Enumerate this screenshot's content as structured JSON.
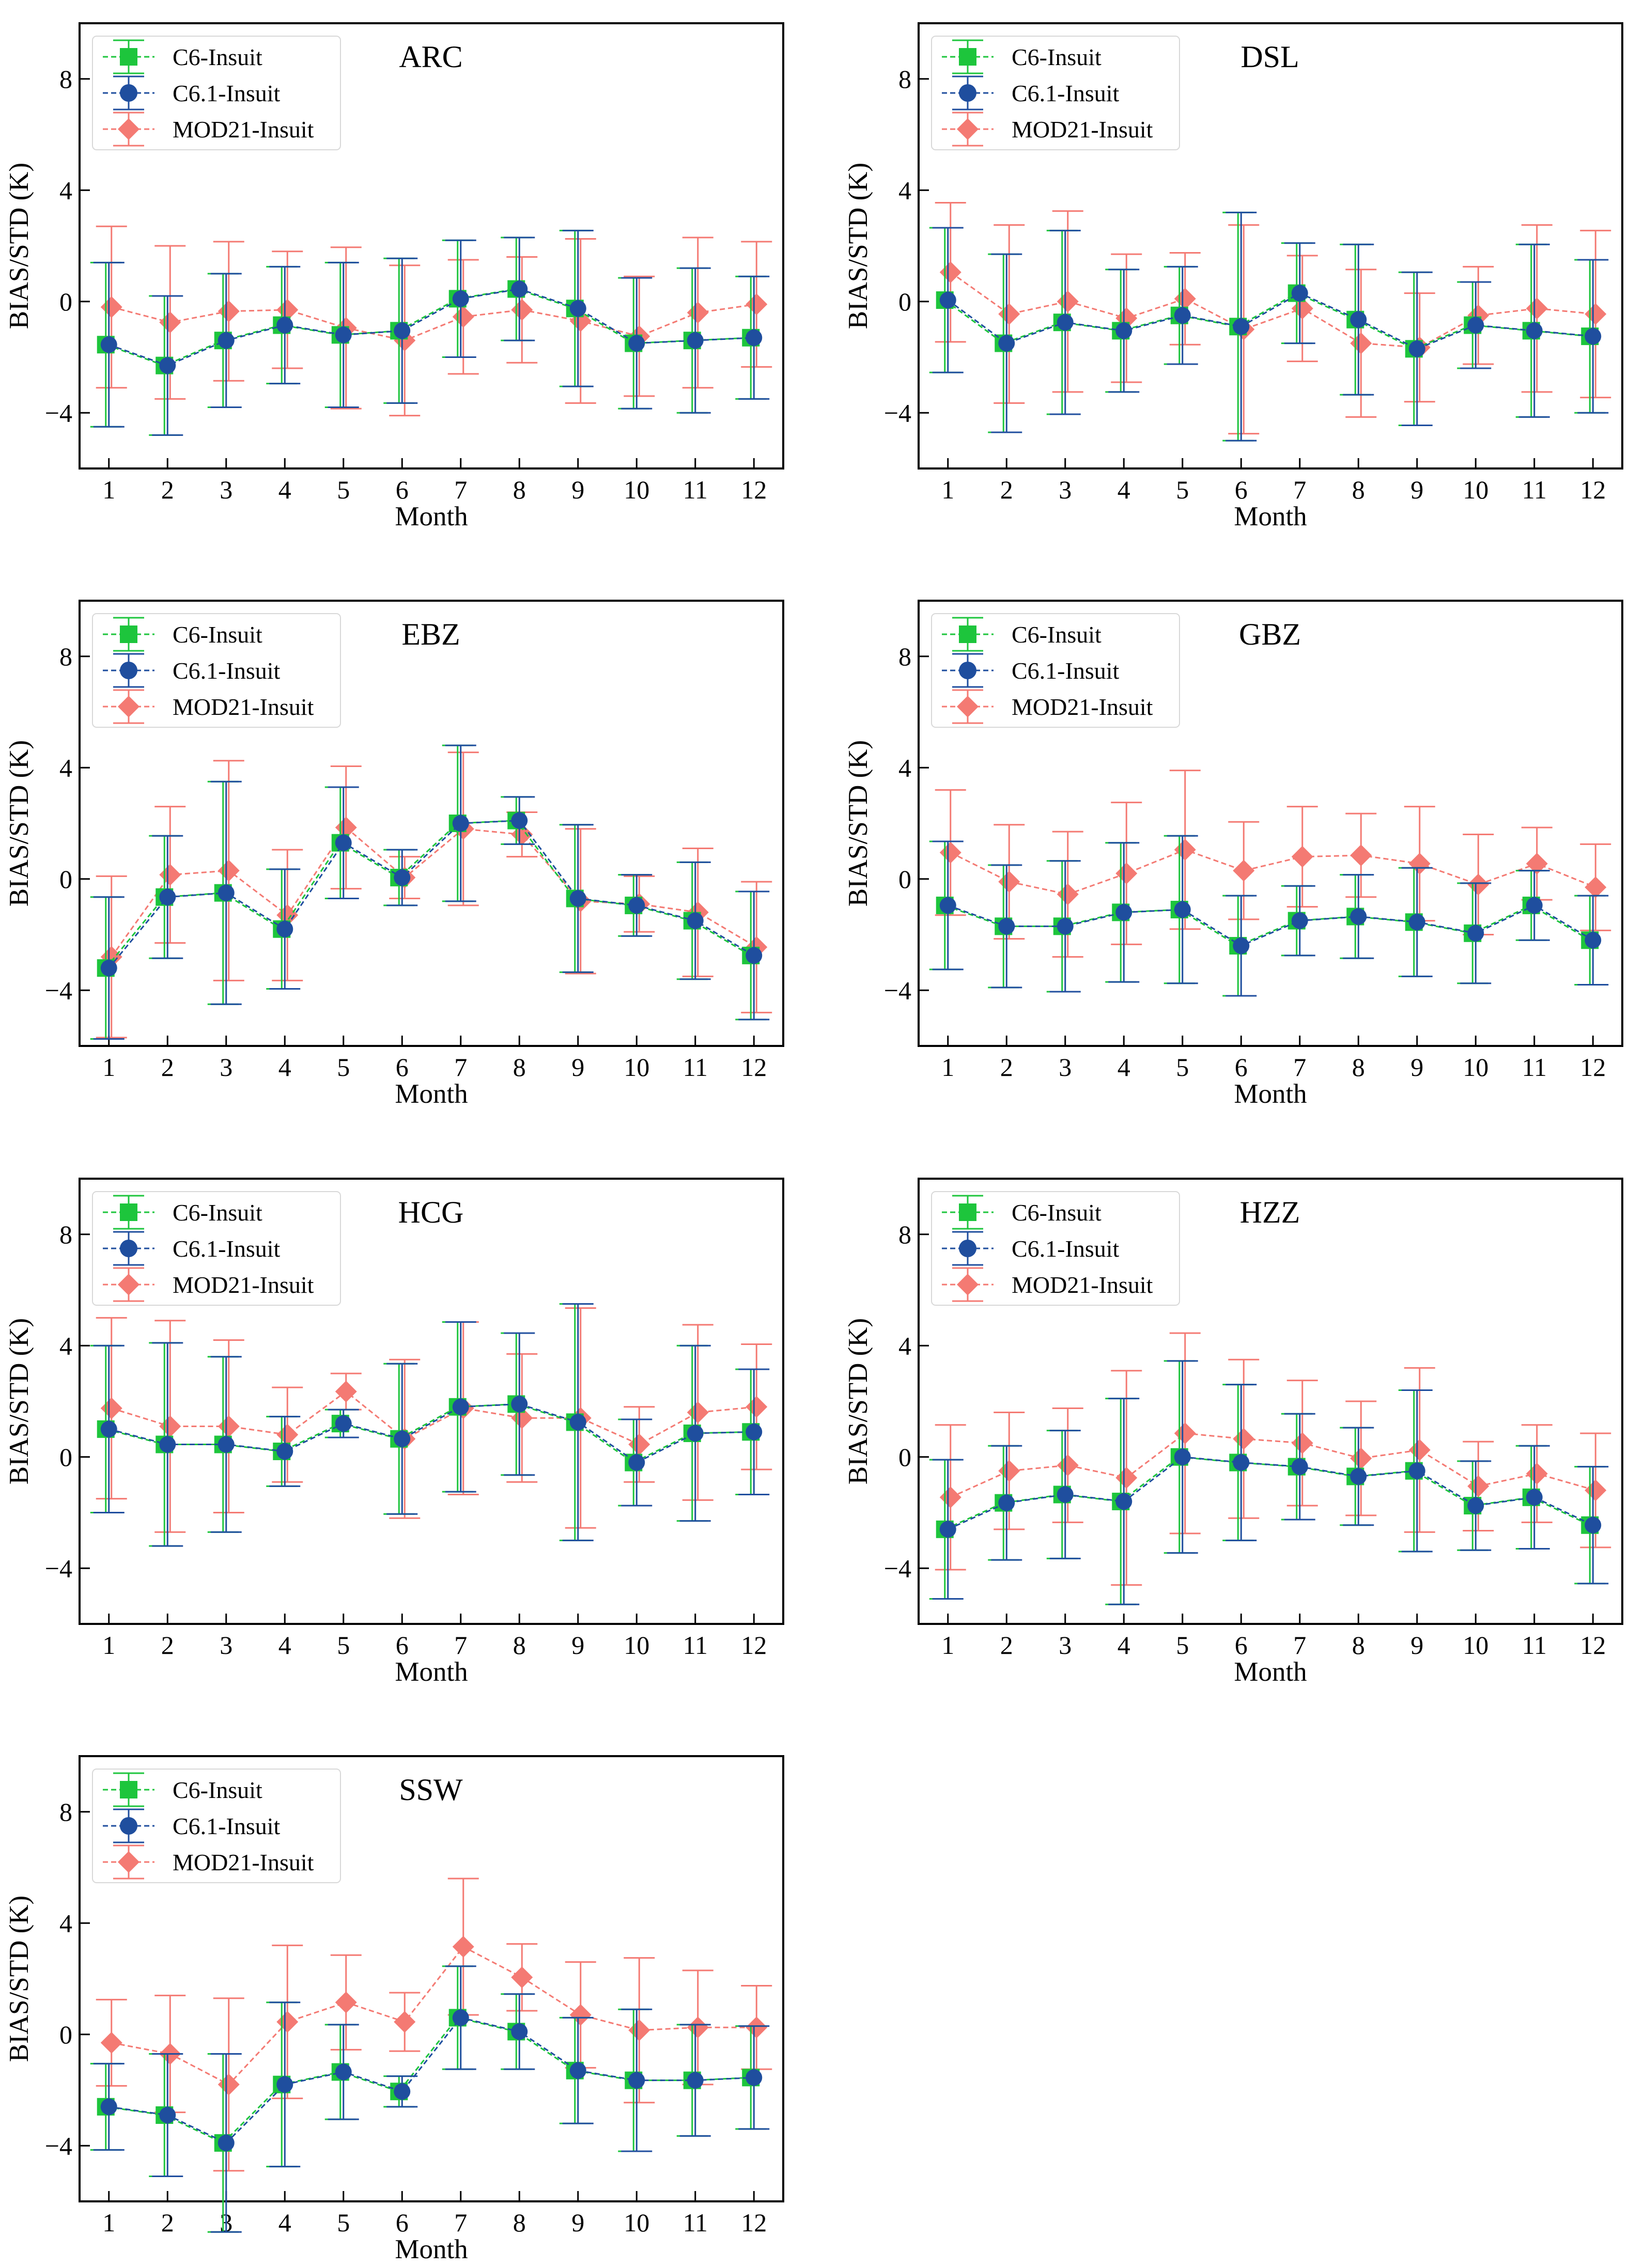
{
  "figure": {
    "xlabel": "Month",
    "ylabel": "BIAS/STD (K)",
    "xticks": [
      "1",
      "2",
      "3",
      "4",
      "5",
      "6",
      "7",
      "8",
      "9",
      "10",
      "11",
      "12"
    ],
    "yticks": [
      -4,
      0,
      4,
      8
    ],
    "ylim": [
      -6,
      10
    ],
    "xlim": [
      0.5,
      12.5
    ]
  },
  "legend": {
    "position": "top-left",
    "entries": [
      {
        "label": "C6-Insuit",
        "marker": "square",
        "color": "#1dc53c"
      },
      {
        "label": "C6.1-Insuit",
        "marker": "circle",
        "color": "#1f4e9e"
      },
      {
        "label": "MOD21-Insuit",
        "marker": "diamond",
        "color": "#f47a73"
      }
    ]
  },
  "chart_data": [
    {
      "type": "line",
      "title": "ARC",
      "xlabel": "Month",
      "ylabel": "BIAS/STD (K)",
      "ylim": [
        -6,
        10
      ],
      "x": [
        1,
        2,
        3,
        4,
        5,
        6,
        7,
        8,
        9,
        10,
        11,
        12
      ],
      "series": [
        {
          "name": "C6-Insuit",
          "values": [
            -1.55,
            -2.3,
            -1.4,
            -0.85,
            -1.2,
            -1.05,
            0.1,
            0.45,
            -0.25,
            -1.5,
            -1.4,
            -1.3
          ],
          "err": [
            2.95,
            2.5,
            2.4,
            2.1,
            2.6,
            2.6,
            2.1,
            1.85,
            2.8,
            2.35,
            2.6,
            2.2
          ]
        },
        {
          "name": "C6.1-Insuit",
          "values": [
            -1.55,
            -2.3,
            -1.4,
            -0.85,
            -1.2,
            -1.05,
            0.1,
            0.45,
            -0.25,
            -1.5,
            -1.4,
            -1.3
          ],
          "err": [
            2.95,
            2.5,
            2.4,
            2.1,
            2.6,
            2.6,
            2.1,
            1.85,
            2.8,
            2.35,
            2.6,
            2.2
          ]
        },
        {
          "name": "MOD21-Insuit",
          "values": [
            -0.2,
            -0.75,
            -0.35,
            -0.3,
            -0.95,
            -1.4,
            -0.55,
            -0.3,
            -0.7,
            -1.25,
            -0.4,
            -0.1
          ],
          "err": [
            2.9,
            2.75,
            2.5,
            2.1,
            2.9,
            2.7,
            2.05,
            1.9,
            2.95,
            2.15,
            2.7,
            2.25
          ]
        }
      ]
    },
    {
      "type": "line",
      "title": "DSL",
      "xlabel": "Month",
      "ylabel": "BIAS/STD (K)",
      "ylim": [
        -6,
        10
      ],
      "x": [
        1,
        2,
        3,
        4,
        5,
        6,
        7,
        8,
        9,
        10,
        11,
        12
      ],
      "series": [
        {
          "name": "C6-Insuit",
          "values": [
            0.05,
            -1.5,
            -0.75,
            -1.05,
            -0.5,
            -0.9,
            0.3,
            -0.65,
            -1.7,
            -0.85,
            -1.05,
            -1.25
          ],
          "err": [
            2.6,
            3.2,
            3.3,
            2.2,
            1.75,
            4.1,
            1.8,
            2.7,
            2.75,
            1.55,
            3.1,
            2.75
          ]
        },
        {
          "name": "C6.1-Insuit",
          "values": [
            0.05,
            -1.5,
            -0.75,
            -1.05,
            -0.5,
            -0.9,
            0.3,
            -0.65,
            -1.7,
            -0.85,
            -1.05,
            -1.25
          ],
          "err": [
            2.6,
            3.2,
            3.3,
            2.2,
            1.75,
            4.1,
            1.8,
            2.7,
            2.75,
            1.55,
            3.1,
            2.75
          ]
        },
        {
          "name": "MOD21-Insuit",
          "values": [
            1.05,
            -0.45,
            0.0,
            -0.6,
            0.1,
            -1.0,
            -0.25,
            -1.5,
            -1.65,
            -0.5,
            -0.25,
            -0.45
          ],
          "err": [
            2.5,
            3.2,
            3.25,
            2.3,
            1.65,
            3.75,
            1.9,
            2.65,
            1.95,
            1.75,
            3.0,
            3.0
          ]
        }
      ]
    },
    {
      "type": "line",
      "title": "EBZ",
      "xlabel": "Month",
      "ylabel": "BIAS/STD (K)",
      "ylim": [
        -6,
        10
      ],
      "x": [
        1,
        2,
        3,
        4,
        5,
        6,
        7,
        8,
        9,
        10,
        11,
        12
      ],
      "series": [
        {
          "name": "C6-Insuit",
          "values": [
            -3.2,
            -0.65,
            -0.5,
            -1.8,
            1.3,
            0.05,
            2.0,
            2.1,
            -0.7,
            -0.95,
            -1.5,
            -2.75
          ],
          "err": [
            2.55,
            2.2,
            4.0,
            2.15,
            2.0,
            1.0,
            2.8,
            0.85,
            2.65,
            1.1,
            2.1,
            2.3
          ]
        },
        {
          "name": "C6.1-Insuit",
          "values": [
            -3.2,
            -0.65,
            -0.5,
            -1.8,
            1.3,
            0.05,
            2.0,
            2.1,
            -0.7,
            -0.95,
            -1.5,
            -2.75
          ],
          "err": [
            2.55,
            2.2,
            4.0,
            2.15,
            2.0,
            1.0,
            2.8,
            0.85,
            2.65,
            1.1,
            2.1,
            2.3
          ]
        },
        {
          "name": "MOD21-Insuit",
          "values": [
            -2.8,
            0.15,
            0.3,
            -1.3,
            1.85,
            0.05,
            1.8,
            1.6,
            -0.8,
            -0.9,
            -1.2,
            -2.45
          ],
          "err": [
            2.9,
            2.45,
            3.95,
            2.35,
            2.2,
            0.75,
            2.75,
            0.8,
            2.6,
            1.0,
            2.3,
            2.35
          ]
        }
      ]
    },
    {
      "type": "line",
      "title": "GBZ",
      "xlabel": "Month",
      "ylabel": "BIAS/STD (K)",
      "ylim": [
        -6,
        10
      ],
      "x": [
        1,
        2,
        3,
        4,
        5,
        6,
        7,
        8,
        9,
        10,
        11,
        12
      ],
      "series": [
        {
          "name": "C6-Insuit",
          "values": [
            -0.95,
            -1.7,
            -1.7,
            -1.2,
            -1.1,
            -2.4,
            -1.5,
            -1.35,
            -1.55,
            -1.95,
            -0.95,
            -2.2
          ],
          "err": [
            2.3,
            2.2,
            2.35,
            2.5,
            2.65,
            1.8,
            1.25,
            1.5,
            1.95,
            1.8,
            1.25,
            1.6
          ]
        },
        {
          "name": "C6.1-Insuit",
          "values": [
            -0.95,
            -1.7,
            -1.7,
            -1.2,
            -1.1,
            -2.4,
            -1.5,
            -1.35,
            -1.55,
            -1.95,
            -0.95,
            -2.2
          ],
          "err": [
            2.3,
            2.2,
            2.35,
            2.5,
            2.65,
            1.8,
            1.25,
            1.5,
            1.95,
            1.8,
            1.25,
            1.6
          ]
        },
        {
          "name": "MOD21-Insuit",
          "values": [
            0.95,
            -0.1,
            -0.55,
            0.2,
            1.05,
            0.3,
            0.8,
            0.85,
            0.55,
            -0.2,
            0.55,
            -0.3
          ],
          "err": [
            2.25,
            2.05,
            2.25,
            2.55,
            2.85,
            1.75,
            1.8,
            1.5,
            2.05,
            1.8,
            1.3,
            1.55
          ]
        }
      ]
    },
    {
      "type": "line",
      "title": "HCG",
      "xlabel": "Month",
      "ylabel": "BIAS/STD (K)",
      "ylim": [
        -6,
        10
      ],
      "x": [
        1,
        2,
        3,
        4,
        5,
        6,
        7,
        8,
        9,
        10,
        11,
        12
      ],
      "series": [
        {
          "name": "C6-Insuit",
          "values": [
            1.0,
            0.45,
            0.45,
            0.2,
            1.2,
            0.65,
            1.8,
            1.9,
            1.25,
            -0.2,
            0.85,
            0.9
          ],
          "err": [
            3.0,
            3.65,
            3.15,
            1.25,
            0.5,
            2.7,
            3.05,
            2.55,
            4.25,
            1.55,
            3.15,
            2.25
          ]
        },
        {
          "name": "C6.1-Insuit",
          "values": [
            1.0,
            0.45,
            0.45,
            0.2,
            1.2,
            0.65,
            1.8,
            1.9,
            1.25,
            -0.2,
            0.85,
            0.9
          ],
          "err": [
            3.0,
            3.65,
            3.15,
            1.25,
            0.5,
            2.7,
            3.05,
            2.55,
            4.25,
            1.55,
            3.15,
            2.25
          ]
        },
        {
          "name": "MOD21-Insuit",
          "values": [
            1.75,
            1.1,
            1.1,
            0.8,
            2.35,
            0.65,
            1.75,
            1.4,
            1.4,
            0.45,
            1.6,
            1.8
          ],
          "err": [
            3.25,
            3.8,
            3.1,
            1.7,
            0.65,
            2.85,
            3.1,
            2.3,
            3.95,
            1.35,
            3.15,
            2.25
          ]
        }
      ]
    },
    {
      "type": "line",
      "title": "HZZ",
      "xlabel": "Month",
      "ylabel": "BIAS/STD (K)",
      "ylim": [
        -6,
        10
      ],
      "x": [
        1,
        2,
        3,
        4,
        5,
        6,
        7,
        8,
        9,
        10,
        11,
        12
      ],
      "series": [
        {
          "name": "C6-Insuit",
          "values": [
            -2.6,
            -1.65,
            -1.35,
            -1.6,
            0.0,
            -0.2,
            -0.35,
            -0.7,
            -0.5,
            -1.75,
            -1.45,
            -2.45
          ],
          "err": [
            2.5,
            2.05,
            2.3,
            3.7,
            3.45,
            2.8,
            1.9,
            1.75,
            2.9,
            1.6,
            1.85,
            2.1
          ]
        },
        {
          "name": "C6.1-Insuit",
          "values": [
            -2.6,
            -1.65,
            -1.35,
            -1.6,
            0.0,
            -0.2,
            -0.35,
            -0.7,
            -0.5,
            -1.75,
            -1.45,
            -2.45
          ],
          "err": [
            2.5,
            2.05,
            2.3,
            3.7,
            3.45,
            2.8,
            1.9,
            1.75,
            2.9,
            1.6,
            1.85,
            2.1
          ]
        },
        {
          "name": "MOD21-Insuit",
          "values": [
            -1.45,
            -0.5,
            -0.3,
            -0.75,
            0.85,
            0.65,
            0.5,
            -0.05,
            0.25,
            -1.05,
            -0.6,
            -1.2
          ],
          "err": [
            2.6,
            2.1,
            2.05,
            3.85,
            3.6,
            2.85,
            2.25,
            2.05,
            2.95,
            1.6,
            1.75,
            2.05
          ]
        }
      ]
    },
    {
      "type": "line",
      "title": "SSW",
      "xlabel": "Month",
      "ylabel": "BIAS/STD (K)",
      "ylim": [
        -6,
        10
      ],
      "x": [
        1,
        2,
        3,
        4,
        5,
        6,
        7,
        8,
        9,
        10,
        11,
        12
      ],
      "series": [
        {
          "name": "C6-Insuit",
          "values": [
            -2.6,
            -2.9,
            -3.9,
            -1.8,
            -1.35,
            -2.05,
            0.6,
            0.1,
            -1.3,
            -1.65,
            -1.65,
            -1.55
          ],
          "err": [
            1.55,
            2.2,
            3.2,
            2.95,
            1.7,
            0.55,
            1.85,
            1.35,
            1.9,
            2.55,
            2.0,
            1.85
          ]
        },
        {
          "name": "C6.1-Insuit",
          "values": [
            -2.6,
            -2.9,
            -3.9,
            -1.8,
            -1.35,
            -2.05,
            0.6,
            0.1,
            -1.3,
            -1.65,
            -1.65,
            -1.55
          ],
          "err": [
            1.55,
            2.2,
            3.2,
            2.95,
            1.7,
            0.55,
            1.85,
            1.35,
            1.9,
            2.55,
            2.0,
            1.85
          ]
        },
        {
          "name": "MOD21-Insuit",
          "values": [
            -0.3,
            -0.7,
            -1.8,
            0.45,
            1.15,
            0.45,
            3.15,
            2.05,
            0.7,
            0.15,
            0.25,
            0.25
          ],
          "err": [
            1.55,
            2.1,
            3.1,
            2.75,
            1.7,
            1.05,
            2.45,
            1.2,
            1.9,
            2.6,
            2.05,
            1.5
          ]
        }
      ]
    }
  ]
}
